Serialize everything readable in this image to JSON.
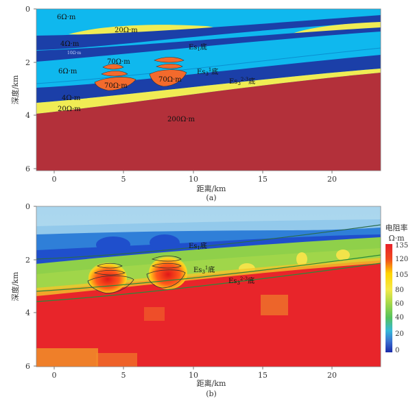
{
  "panel_a": {
    "caption": "(a)",
    "xlabel": "距离/km",
    "ylabel": "深度/km",
    "x_ticks": [
      "0",
      "5",
      "10",
      "15",
      "20"
    ],
    "y_ticks": [
      "0",
      "2",
      "4",
      "6"
    ],
    "labels": {
      "r6_top": "6Ω·m",
      "r20_top": "20Ω·m",
      "r4_top": "4Ω·m",
      "r10": "10Ω·m",
      "es1": "Es",
      "es1_sub": "1",
      "es1_suf": "底",
      "r6_mid": "6Ω·m",
      "r70_a": "70Ω·m",
      "r70_b": "70Ω·m",
      "r70_c": "70Ω·m",
      "es3_1": "Es",
      "es3_1_sub": "3",
      "es3_1_sup": "1",
      "es3_1_suf": "底",
      "es3_23": "Es",
      "es3_23_sub": "3",
      "es3_23_sup": "2-3",
      "es3_23_suf": "底",
      "r4_bot": "4Ω·m",
      "r20_bot": "20Ω·m",
      "r200": "200Ω·m"
    }
  },
  "panel_b": {
    "caption": "(b)",
    "xlabel": "距离/km",
    "ylabel": "深度/km",
    "x_ticks": [
      "0",
      "5",
      "10",
      "15",
      "20"
    ],
    "y_ticks": [
      "0",
      "2",
      "4",
      "6"
    ],
    "labels": {
      "es1": "Es",
      "es1_sub": "1",
      "es1_suf": "底",
      "es3_1": "Es",
      "es3_1_sub": "3",
      "es3_1_sup": "1",
      "es3_1_suf": "底",
      "es3_23": "Es",
      "es3_23_sub": "3",
      "es3_23_sup": "2-3",
      "es3_23_suf": "底"
    },
    "colorbar": {
      "title": "电阻率",
      "unit": "Ω·m",
      "ticks": [
        "135",
        "120",
        "105",
        "80",
        "60",
        "40",
        "20",
        "0"
      ]
    }
  },
  "colors": {
    "light_cyan": "#0fb8ee",
    "dark_blue": "#1b3fa8",
    "yellow": "#f0ec54",
    "basement": "#b3303a",
    "orange": "#f36a2c"
  }
}
